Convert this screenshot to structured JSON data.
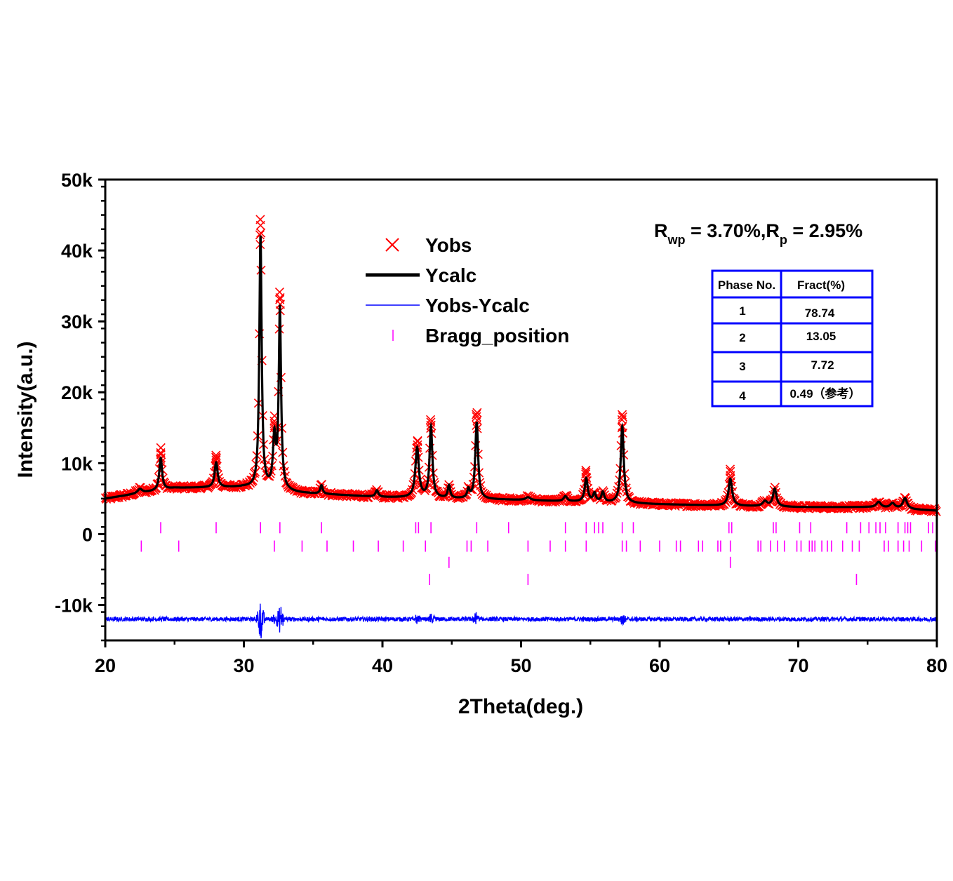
{
  "chart_data": {
    "type": "line",
    "xlabel": "2Theta(deg.)",
    "ylabel": "Intensity(a.u.)",
    "xlim": [
      20,
      80
    ],
    "ylim": [
      -15000,
      50000
    ],
    "x_ticks": [
      20,
      30,
      40,
      50,
      60,
      70,
      80
    ],
    "y_ticks": [
      -10000,
      0,
      10000,
      20000,
      30000,
      40000,
      50000
    ],
    "y_tick_labels": [
      "-10k",
      "0",
      "10k",
      "20k",
      "30k",
      "40k",
      "50k"
    ],
    "x_tick_labels": [
      "20",
      "30",
      "40",
      "50",
      "60",
      "70",
      "80"
    ],
    "grid": false,
    "legend_position": "top-center",
    "colors": {
      "obs": "#ff0000",
      "calc": "#000000",
      "diff": "#0000ff",
      "bragg": "#ff00ff",
      "table_border": "#0000ff"
    },
    "series": [
      {
        "name": "Yobs",
        "style": "marker-x",
        "x_range": [
          20,
          80
        ],
        "background": [
          [
            20,
            5000
          ],
          [
            25,
            6500
          ],
          [
            30,
            6600
          ],
          [
            34,
            5800
          ],
          [
            40,
            5200
          ],
          [
            50,
            4800
          ],
          [
            60,
            4200
          ],
          [
            70,
            3800
          ],
          [
            75,
            3800
          ],
          [
            80,
            3300
          ]
        ],
        "peaks": [
          [
            22.5,
            600,
            0.2
          ],
          [
            24,
            4500,
            0.12
          ],
          [
            28,
            3500,
            0.13
          ],
          [
            31.2,
            35500,
            0.1
          ],
          [
            32.2,
            7000,
            0.12
          ],
          [
            32.6,
            25500,
            0.1
          ],
          [
            35.6,
            1200,
            0.1
          ],
          [
            39.6,
            900,
            0.12
          ],
          [
            42.5,
            7000,
            0.15
          ],
          [
            43.5,
            10000,
            0.12
          ],
          [
            44.8,
            1800,
            0.1
          ],
          [
            46.2,
            1200,
            0.1
          ],
          [
            46.8,
            10800,
            0.12
          ],
          [
            50.5,
            400,
            0.2
          ],
          [
            53.2,
            700,
            0.15
          ],
          [
            54.7,
            3300,
            0.13
          ],
          [
            55.3,
            1200,
            0.12
          ],
          [
            55.9,
            1400,
            0.12
          ],
          [
            57.3,
            10800,
            0.13
          ],
          [
            65.1,
            3800,
            0.15
          ],
          [
            67.6,
            700,
            0.2
          ],
          [
            68.3,
            2500,
            0.15
          ],
          [
            75.8,
            800,
            0.2
          ],
          [
            76.8,
            700,
            0.2
          ],
          [
            77.7,
            1500,
            0.18
          ]
        ]
      },
      {
        "name": "Ycalc",
        "style": "line"
      },
      {
        "name": "Yobs-Ycalc",
        "style": "thin-line",
        "baseline": -12000
      },
      {
        "name": "Bragg_position",
        "style": "ticks",
        "phases": [
          {
            "y": 900,
            "positions": [
              24.0,
              28.0,
              31.2,
              32.6,
              35.6,
              42.4,
              42.6,
              43.5,
              46.8,
              49.1,
              53.2,
              54.7,
              55.3,
              55.6,
              55.9,
              57.3,
              58.1,
              65.0,
              65.2,
              68.2,
              68.4,
              70.1,
              70.9,
              73.5,
              74.5,
              75.1,
              75.6,
              75.9,
              76.3,
              77.2,
              77.7,
              77.9,
              78.1,
              79.4,
              79.7
            ]
          },
          {
            "y": -1700,
            "positions": [
              22.6,
              25.3,
              32.2,
              34.2,
              36.0,
              37.9,
              39.7,
              41.5,
              43.1,
              46.1,
              46.4,
              47.6,
              50.5,
              52.1,
              53.2,
              54.7,
              57.3,
              57.6,
              58.6,
              60.0,
              61.2,
              61.5,
              62.8,
              63.1,
              64.2,
              64.4,
              65.1,
              67.1,
              67.3,
              68.0,
              68.5,
              69.0,
              69.9,
              70.2,
              70.8,
              71.0,
              71.2,
              71.7,
              72.1,
              72.4,
              73.2,
              73.9,
              74.4,
              76.2,
              76.5,
              77.2,
              77.6,
              78.0,
              78.9,
              79.9
            ]
          },
          {
            "y": -4000,
            "positions": [
              44.8,
              65.1
            ]
          },
          {
            "y": -6400,
            "positions": [
              43.4,
              50.5,
              74.2
            ]
          }
        ]
      }
    ],
    "annotation": {
      "r_main": "R",
      "r_sub1": "wp",
      "r_mid": " = 3.70%,R",
      "r_sub2": "p",
      "r_end": " = 2.95%"
    },
    "table": {
      "headers": [
        "Phase No.",
        "Fract(%)"
      ],
      "rows": [
        [
          "1",
          "78.74"
        ],
        [
          "2",
          "13.05"
        ],
        [
          "3",
          "7.72"
        ],
        [
          "4",
          "0.49（参考）"
        ]
      ]
    }
  }
}
